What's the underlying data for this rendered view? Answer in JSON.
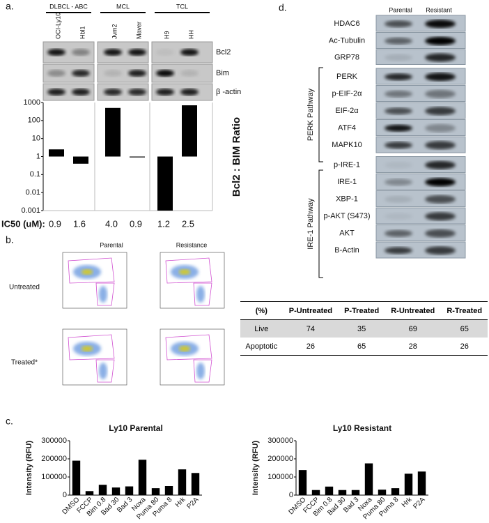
{
  "panels": {
    "a": "a.",
    "b": "b.",
    "c": "c.",
    "d": "d."
  },
  "panel_a": {
    "groups": [
      "DLBCL - ABC",
      "MCL",
      "TCL"
    ],
    "blot_labels": [
      "Bcl2",
      "Bim",
      "β -actin"
    ],
    "ic50_label": "IC50 (uM):",
    "ic50": [
      "0.9",
      "1.6",
      "4.0",
      "0.9",
      "1.2",
      "2.5"
    ]
  },
  "chart_data": [
    {
      "type": "bar",
      "ylabel": "Bcl2 : BIM Ratio",
      "log_scale": true,
      "categories": [
        "OCI-Ly10",
        "Hbl1",
        "Jvm2",
        "Maver",
        "H9",
        "HH"
      ],
      "values": [
        2.5,
        0.4,
        500,
        0.9,
        0.001,
        700
      ],
      "color": "#000000",
      "ylim": [
        0.001,
        1000
      ],
      "yticks": [
        0.001,
        0.01,
        0.1,
        1,
        10,
        100,
        1000
      ]
    },
    {
      "type": "bar",
      "title": "Ly10 Parental",
      "ylabel": "Intensity (RFU)",
      "categories": [
        "DMSO",
        "FCCP",
        "Bim 0.8",
        "Bad 30",
        "Bad 3",
        "Noxa",
        "Puma 80",
        "Puma 8",
        "Hrk",
        "P2A"
      ],
      "values": [
        190000,
        22000,
        57000,
        42000,
        48000,
        195000,
        38000,
        50000,
        142000,
        122000
      ],
      "color": "#000000",
      "ylim": [
        0,
        300000
      ],
      "yticks": [
        0,
        100000,
        200000,
        300000
      ]
    },
    {
      "type": "bar",
      "title": "Ly10 Resistant",
      "ylabel": "Intensity (RFU)",
      "categories": [
        "DMSO",
        "FCCP",
        "Bim 0.8",
        "Bad 30",
        "Bad 3",
        "Noxa",
        "Puma 80",
        "Puma 8",
        "Hrk",
        "P2A"
      ],
      "values": [
        138000,
        28000,
        47000,
        28000,
        28000,
        175000,
        30000,
        38000,
        118000,
        130000
      ],
      "color": "#000000",
      "ylim": [
        0,
        300000
      ],
      "yticks": [
        0,
        100000,
        200000,
        300000
      ]
    }
  ],
  "panel_b": {
    "columns": [
      "Parental",
      "Resistance"
    ],
    "rows": [
      "Untreated",
      "Treated*"
    ]
  },
  "table": {
    "header": [
      "(%)",
      "P-Untreated",
      "P-Treated",
      "R-Untreated",
      "R-Treated"
    ],
    "rows": [
      [
        "Live",
        "74",
        "35",
        "69",
        "65"
      ],
      [
        "Apoptotic",
        "26",
        "65",
        "28",
        "26"
      ]
    ]
  },
  "panel_d": {
    "columns": [
      "Parental",
      "Resistant"
    ],
    "proteins": [
      "HDAC6",
      "Ac-Tubulin",
      "GRP78",
      "PERK",
      "p-EIF-2α",
      "EIF-2α",
      "ATF4",
      "MAPK10",
      "p-IRE-1",
      "IRE-1",
      "XBP-1",
      "p-AKT (S473)",
      "AKT",
      "B-Actin"
    ],
    "pathways": [
      "PERK Pathway",
      "IRE-1 Pathway"
    ]
  }
}
